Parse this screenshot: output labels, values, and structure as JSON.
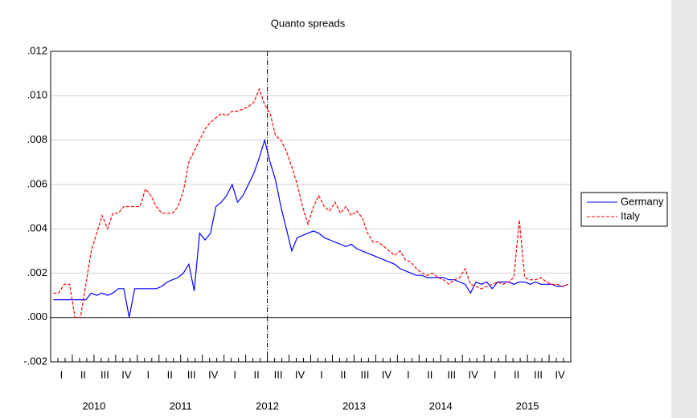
{
  "chart_data": {
    "type": "line",
    "title": "Quanto spreads",
    "quarters": [
      "I",
      "II",
      "III",
      "IV",
      "I",
      "II",
      "III",
      "IV",
      "I",
      "II",
      "III",
      "IV",
      "I",
      "II",
      "III",
      "IV",
      "I",
      "II",
      "III",
      "IV",
      "I",
      "II",
      "III",
      "IV"
    ],
    "years": [
      "2010",
      "2011",
      "2012",
      "2013",
      "2014",
      "2015"
    ],
    "ylim": [
      -0.002,
      0.012
    ],
    "yticks": [
      {
        "value": -0.002,
        "label": "-.002"
      },
      {
        "value": 0,
        "label": ".000"
      },
      {
        "value": 0.002,
        "label": ".002"
      },
      {
        "value": 0.004,
        "label": ".004"
      },
      {
        "value": 0.006,
        "label": ".006"
      },
      {
        "value": 0.008,
        "label": ".008"
      },
      {
        "value": 0.01,
        "label": ".010"
      },
      {
        "value": 0.012,
        "label": ".012"
      }
    ],
    "grid": true,
    "legend": "right",
    "series": [
      {
        "name": "Germany",
        "color": "#0000ff",
        "dash": "solid",
        "values": [
          0.0008,
          0.0008,
          0.0008,
          0.0008,
          0.0008,
          0.0008,
          0.0008,
          0.0011,
          0.001,
          0.0011,
          0.001,
          0.0011,
          0.0013,
          0.0013,
          0,
          0.0013,
          0.0013,
          0.0013,
          0.0013,
          0.0013,
          0.0014,
          0.0016,
          0.0017,
          0.0018,
          0.002,
          0.0024,
          0.0012,
          0.0038,
          0.0035,
          0.0038,
          0.005,
          0.0052,
          0.0055,
          0.006,
          0.0052,
          0.0055,
          0.006,
          0.0065,
          0.0072,
          0.008,
          0.007,
          0.0062,
          0.005,
          0.004,
          0.003,
          0.0036,
          0.0037,
          0.0038,
          0.0039,
          0.0038,
          0.0036,
          0.0035,
          0.0034,
          0.0033,
          0.0032,
          0.0033,
          0.0031,
          0.003,
          0.0029,
          0.0028,
          0.0027,
          0.0026,
          0.0025,
          0.0024,
          0.0022,
          0.0021,
          0.002,
          0.0019,
          0.0019,
          0.0018,
          0.0018,
          0.0018,
          0.0018,
          0.0017,
          0.0017,
          0.0016,
          0.0015,
          0.0011,
          0.0016,
          0.0015,
          0.0016,
          0.0013,
          0.0016,
          0.0016,
          0.0016,
          0.0015,
          0.0016,
          0.0016,
          0.0015,
          0.0016,
          0.0015,
          0.0015,
          0.0015,
          0.0014,
          0.0014,
          0.0015
        ]
      },
      {
        "name": "Italy",
        "color": "#ff0000",
        "dash": "dashed",
        "values": [
          0.0011,
          0.0011,
          0.0015,
          0.0015,
          0,
          0,
          0.0015,
          0.003,
          0.0038,
          0.0046,
          0.004,
          0.0047,
          0.0047,
          0.005,
          0.005,
          0.005,
          0.005,
          0.0058,
          0.0055,
          0.005,
          0.0047,
          0.0047,
          0.0047,
          0.005,
          0.0057,
          0.007,
          0.0075,
          0.008,
          0.0085,
          0.0088,
          0.009,
          0.0092,
          0.0091,
          0.0093,
          0.0093,
          0.0094,
          0.0095,
          0.0097,
          0.0103,
          0.0096,
          0.0092,
          0.0082,
          0.008,
          0.0075,
          0.0068,
          0.006,
          0.005,
          0.0042,
          0.005,
          0.0055,
          0.005,
          0.0048,
          0.0052,
          0.0047,
          0.005,
          0.0046,
          0.0048,
          0.0045,
          0.0038,
          0.0034,
          0.0034,
          0.0032,
          0.003,
          0.0028,
          0.003,
          0.0026,
          0.0025,
          0.0022,
          0.002,
          0.0019,
          0.002,
          0.0018,
          0.0017,
          0.0015,
          0.0017,
          0.0018,
          0.0022,
          0.0015,
          0.0014,
          0.0013,
          0.0014,
          0.0015,
          0.0016,
          0.0015,
          0.0016,
          0.0018,
          0.0044,
          0.0018,
          0.0017,
          0.0017,
          0.0018,
          0.0016,
          0.0015,
          0.0015,
          0.0014,
          0.0015
        ]
      }
    ]
  }
}
